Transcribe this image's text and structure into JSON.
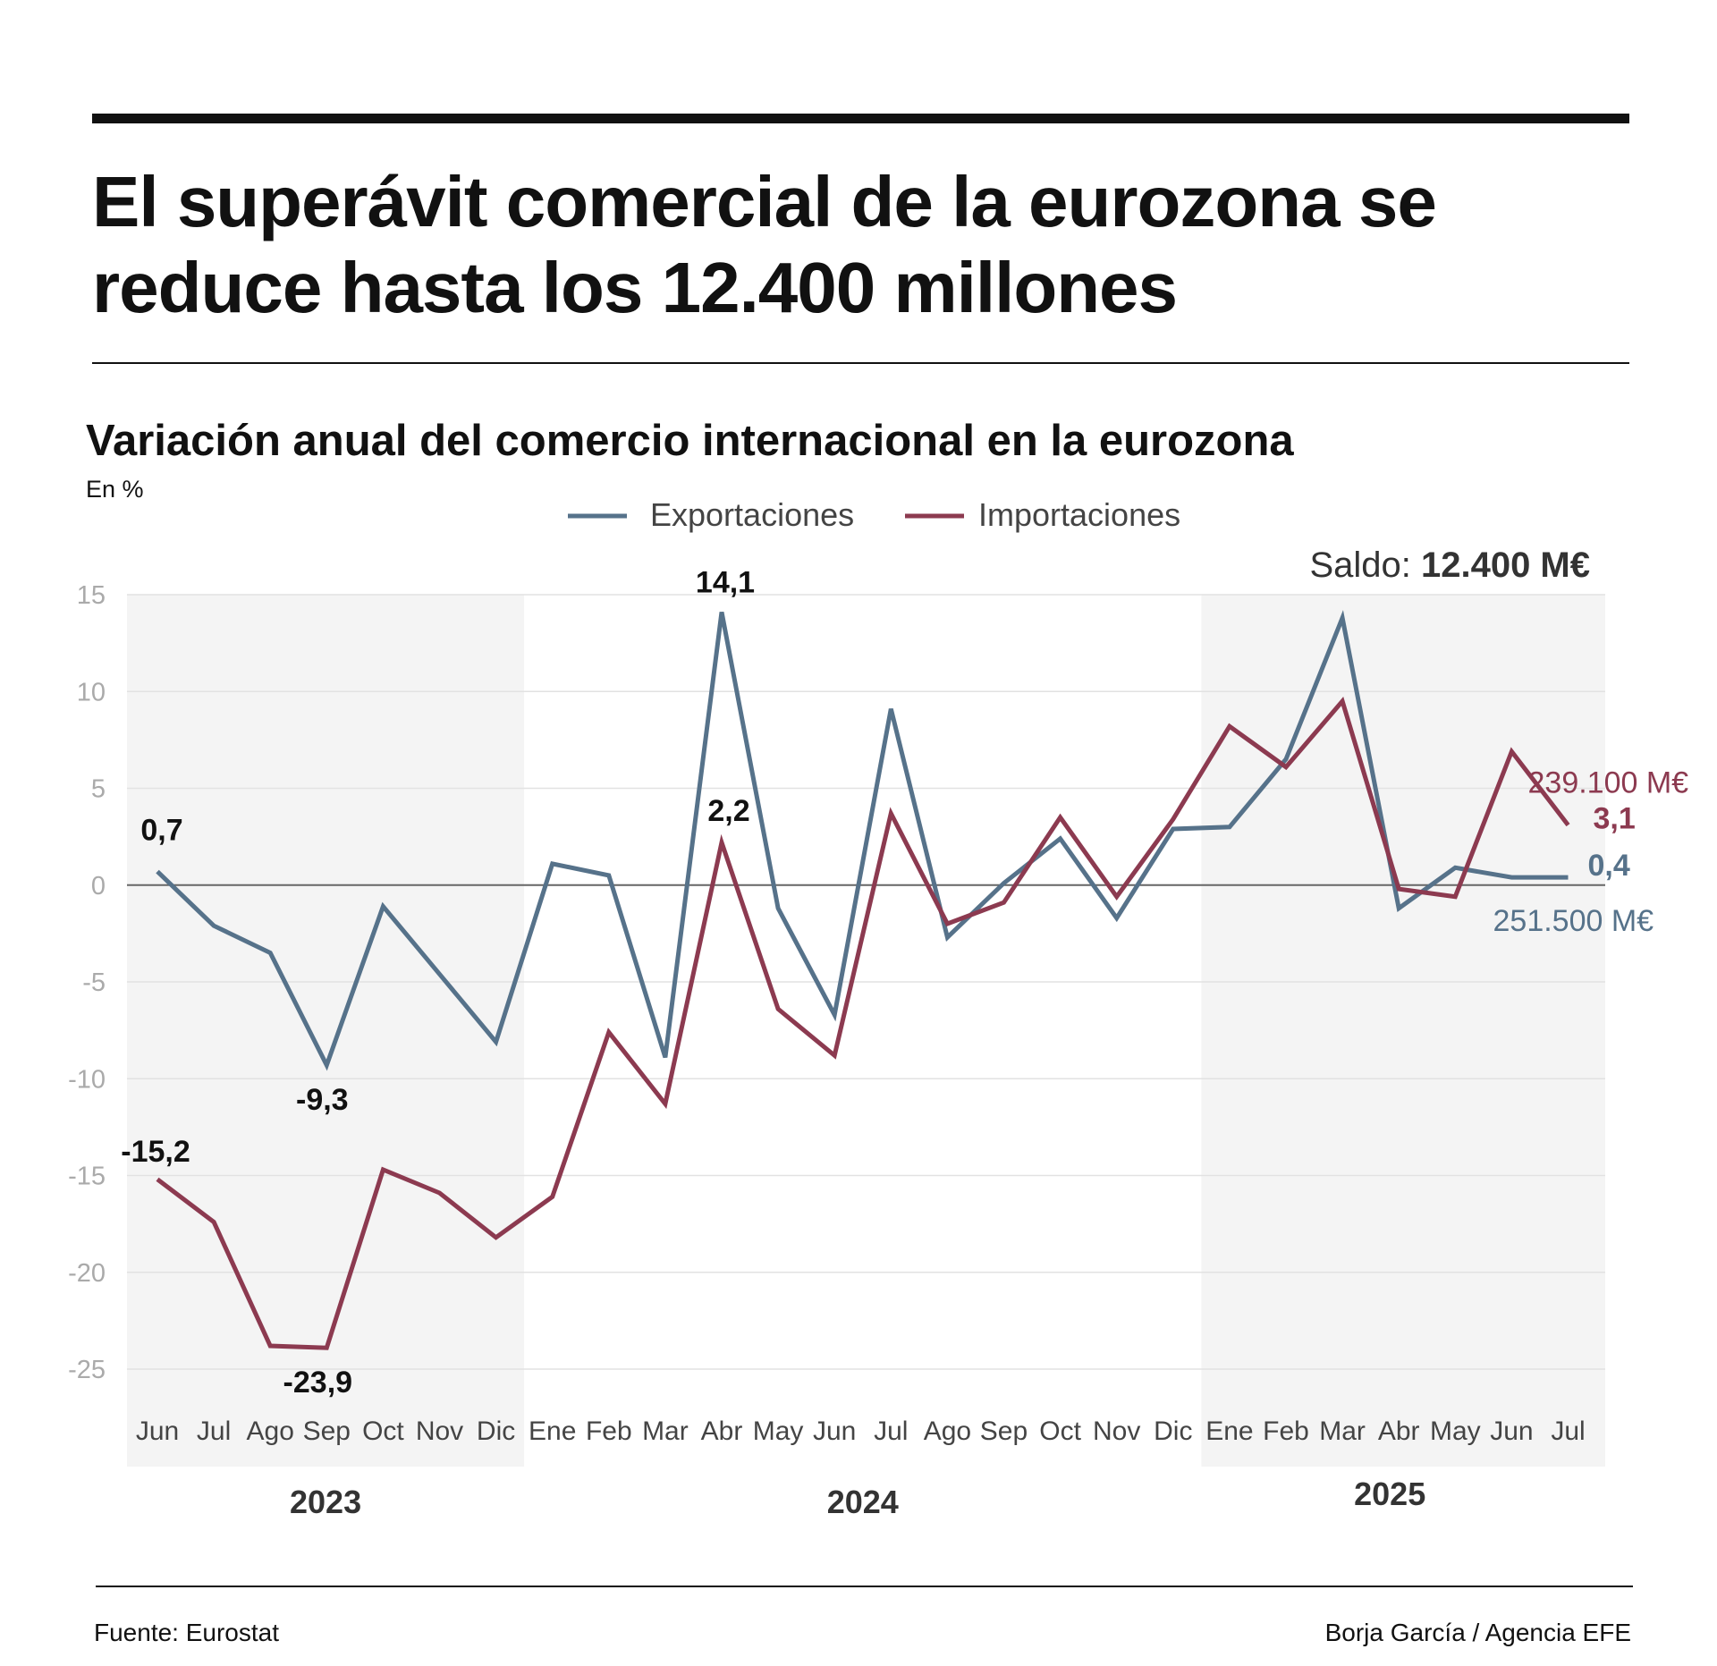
{
  "title": "El superávit comercial de la eurozona se reduce hasta los 12.400 millones",
  "subtitle": "Variación anual del comercio internacional en la eurozona",
  "unit": "En %",
  "source": "Fuente: Eurostat",
  "credit": "Borja García / Agencia EFE",
  "chart_data": {
    "type": "line",
    "ylim": [
      -25,
      15
    ],
    "yticks": [
      15,
      10,
      5,
      0,
      -5,
      -10,
      -15,
      -20,
      -25
    ],
    "grid": true,
    "legend_position": "top-center",
    "categories": [
      "Jun",
      "Jul",
      "Ago",
      "Sep",
      "Oct",
      "Nov",
      "Dic",
      "Ene",
      "Feb",
      "Mar",
      "Abr",
      "May",
      "Jun",
      "Jul",
      "Ago",
      "Sep",
      "Oct",
      "Nov",
      "Dic",
      "Ene",
      "Feb",
      "Mar",
      "Abr",
      "May",
      "Jun",
      "Jul"
    ],
    "years": [
      {
        "label": "2023",
        "from": 0,
        "to": 6,
        "shaded": true
      },
      {
        "label": "2024",
        "from": 7,
        "to": 18,
        "shaded": false
      },
      {
        "label": "2025",
        "from": 19,
        "to": 25,
        "shaded": true
      }
    ],
    "series": [
      {
        "name": "Exportaciones",
        "color": "#56728a",
        "values": [
          0.7,
          -2.1,
          -3.5,
          -9.3,
          -1.1,
          -4.6,
          -8.1,
          1.1,
          0.5,
          -8.9,
          14.1,
          -1.2,
          -6.7,
          9.1,
          -2.7,
          0.1,
          2.4,
          -1.7,
          2.9,
          3.0,
          6.5,
          13.8,
          -1.2,
          0.9,
          0.4,
          0.4
        ]
      },
      {
        "name": "Importaciones",
        "color": "#8c3a50",
        "values": [
          -15.2,
          -17.4,
          -23.8,
          -23.9,
          -14.7,
          -15.9,
          -18.2,
          -16.1,
          -7.6,
          -11.3,
          2.2,
          -6.4,
          -8.8,
          3.7,
          -2.0,
          -0.9,
          3.5,
          -0.6,
          3.4,
          8.2,
          6.1,
          9.5,
          -0.2,
          -0.6,
          6.9,
          3.1
        ]
      }
    ],
    "annotations": [
      {
        "text": "0,7",
        "series": 0,
        "index": 0
      },
      {
        "text": "-9,3",
        "series": 0,
        "index": 3
      },
      {
        "text": "14,1",
        "series": 0,
        "index": 10
      },
      {
        "text": "-15,2",
        "series": 1,
        "index": 0
      },
      {
        "text": "-23,9",
        "series": 1,
        "index": 3
      },
      {
        "text": "2,2",
        "series": 1,
        "index": 10
      },
      {
        "text": "3,1",
        "series": 1,
        "index": 25
      },
      {
        "text": "0,4",
        "series": 0,
        "index": 25
      },
      {
        "text": "239.100 M€",
        "series": 1,
        "index": 25
      },
      {
        "text": "251.500 M€",
        "series": 0,
        "index": 25
      }
    ],
    "balance": {
      "label": "Saldo:",
      "value": "12.400 M€"
    }
  }
}
